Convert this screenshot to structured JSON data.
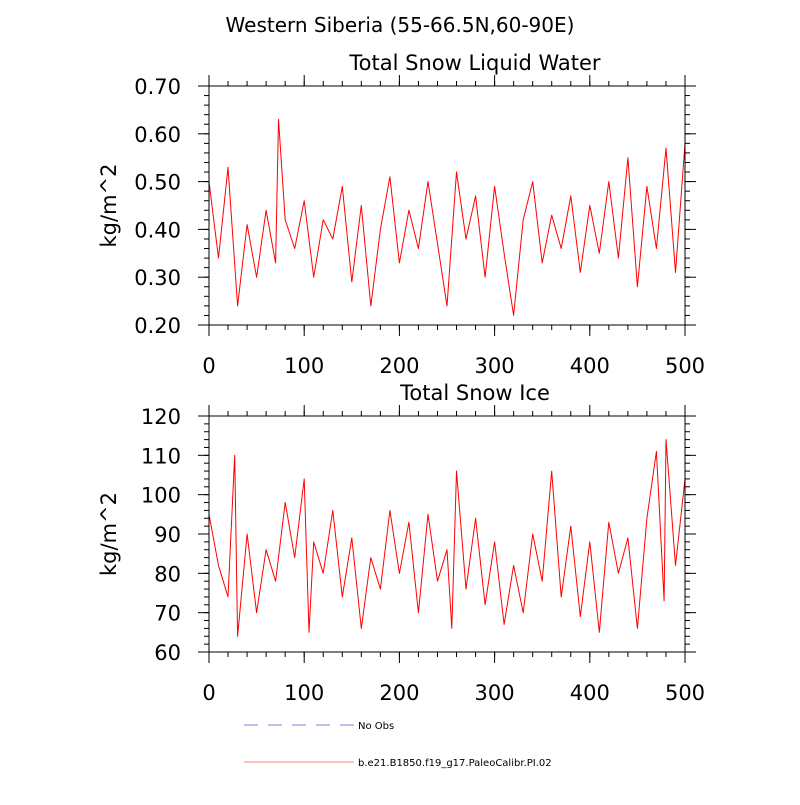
{
  "figure_title": "Western Siberia (55-66.5N,60-90E)",
  "legend": {
    "entries": [
      {
        "label": "No Obs",
        "color": "#9a9ae0",
        "style": "dashed"
      },
      {
        "label": "b.e21.B1850.f19_g17.PaleoCalibr.PI.02",
        "color": "#ff0000",
        "style": "solid"
      }
    ],
    "placement": "bottom"
  },
  "chart_data": [
    {
      "type": "line",
      "title": "Total Snow Liquid Water",
      "xlabel": "",
      "ylabel": "kg/m^2",
      "xlim": [
        0,
        500
      ],
      "ylim": [
        0.2,
        0.7
      ],
      "xticks": [
        0,
        100,
        200,
        300,
        400,
        500
      ],
      "xtick_labels": [
        "0",
        "100",
        "200",
        "300",
        "400",
        "500"
      ],
      "yticks": [
        0.2,
        0.3,
        0.4,
        0.5,
        0.6,
        0.7
      ],
      "ytick_labels": [
        "0.20",
        "0.30",
        "0.40",
        "0.50",
        "0.60",
        "0.70"
      ],
      "grid": false,
      "series": [
        {
          "name": "b.e21.B1850.f19_g17.PaleoCalibr.PI.02",
          "color": "#ff0000",
          "x": [
            0,
            10,
            20,
            30,
            40,
            50,
            60,
            70,
            73,
            80,
            90,
            100,
            110,
            120,
            130,
            140,
            150,
            160,
            170,
            180,
            190,
            200,
            210,
            220,
            230,
            240,
            250,
            260,
            270,
            280,
            290,
            300,
            310,
            320,
            330,
            340,
            350,
            360,
            370,
            380,
            390,
            400,
            410,
            420,
            430,
            440,
            450,
            460,
            470,
            480,
            490,
            500
          ],
          "values": [
            0.5,
            0.34,
            0.53,
            0.24,
            0.41,
            0.3,
            0.44,
            0.33,
            0.63,
            0.42,
            0.36,
            0.46,
            0.3,
            0.42,
            0.38,
            0.49,
            0.29,
            0.45,
            0.24,
            0.4,
            0.51,
            0.33,
            0.44,
            0.36,
            0.5,
            0.37,
            0.24,
            0.52,
            0.38,
            0.47,
            0.3,
            0.49,
            0.35,
            0.22,
            0.42,
            0.5,
            0.33,
            0.43,
            0.36,
            0.47,
            0.31,
            0.45,
            0.35,
            0.5,
            0.34,
            0.55,
            0.28,
            0.49,
            0.36,
            0.57,
            0.31,
            0.58
          ]
        }
      ]
    },
    {
      "type": "line",
      "title": "Total Snow Ice",
      "xlabel": "",
      "ylabel": "kg/m^2",
      "xlim": [
        0,
        500
      ],
      "ylim": [
        60,
        120
      ],
      "xticks": [
        0,
        100,
        200,
        300,
        400,
        500
      ],
      "xtick_labels": [
        "0",
        "100",
        "200",
        "300",
        "400",
        "500"
      ],
      "yticks": [
        60,
        70,
        80,
        90,
        100,
        110,
        120
      ],
      "ytick_labels": [
        "60",
        "70",
        "80",
        "90",
        "100",
        "110",
        "120"
      ],
      "grid": false,
      "series": [
        {
          "name": "b.e21.B1850.f19_g17.PaleoCalibr.PI.02",
          "color": "#ff0000",
          "x": [
            0,
            10,
            20,
            27,
            30,
            40,
            50,
            60,
            70,
            80,
            90,
            100,
            105,
            110,
            120,
            130,
            140,
            150,
            160,
            170,
            180,
            190,
            200,
            210,
            220,
            230,
            240,
            250,
            255,
            260,
            270,
            280,
            290,
            300,
            310,
            320,
            330,
            340,
            350,
            360,
            370,
            380,
            390,
            400,
            410,
            420,
            430,
            440,
            450,
            460,
            470,
            478,
            480,
            490,
            500
          ],
          "values": [
            95,
            82,
            74,
            110,
            64,
            90,
            70,
            86,
            78,
            98,
            84,
            104,
            65,
            88,
            80,
            96,
            74,
            89,
            66,
            84,
            76,
            96,
            80,
            93,
            70,
            95,
            78,
            86,
            66,
            106,
            76,
            94,
            72,
            88,
            67,
            82,
            70,
            90,
            78,
            106,
            74,
            92,
            69,
            88,
            65,
            93,
            80,
            89,
            66,
            94,
            111,
            73,
            114,
            82,
            104
          ]
        }
      ]
    }
  ]
}
